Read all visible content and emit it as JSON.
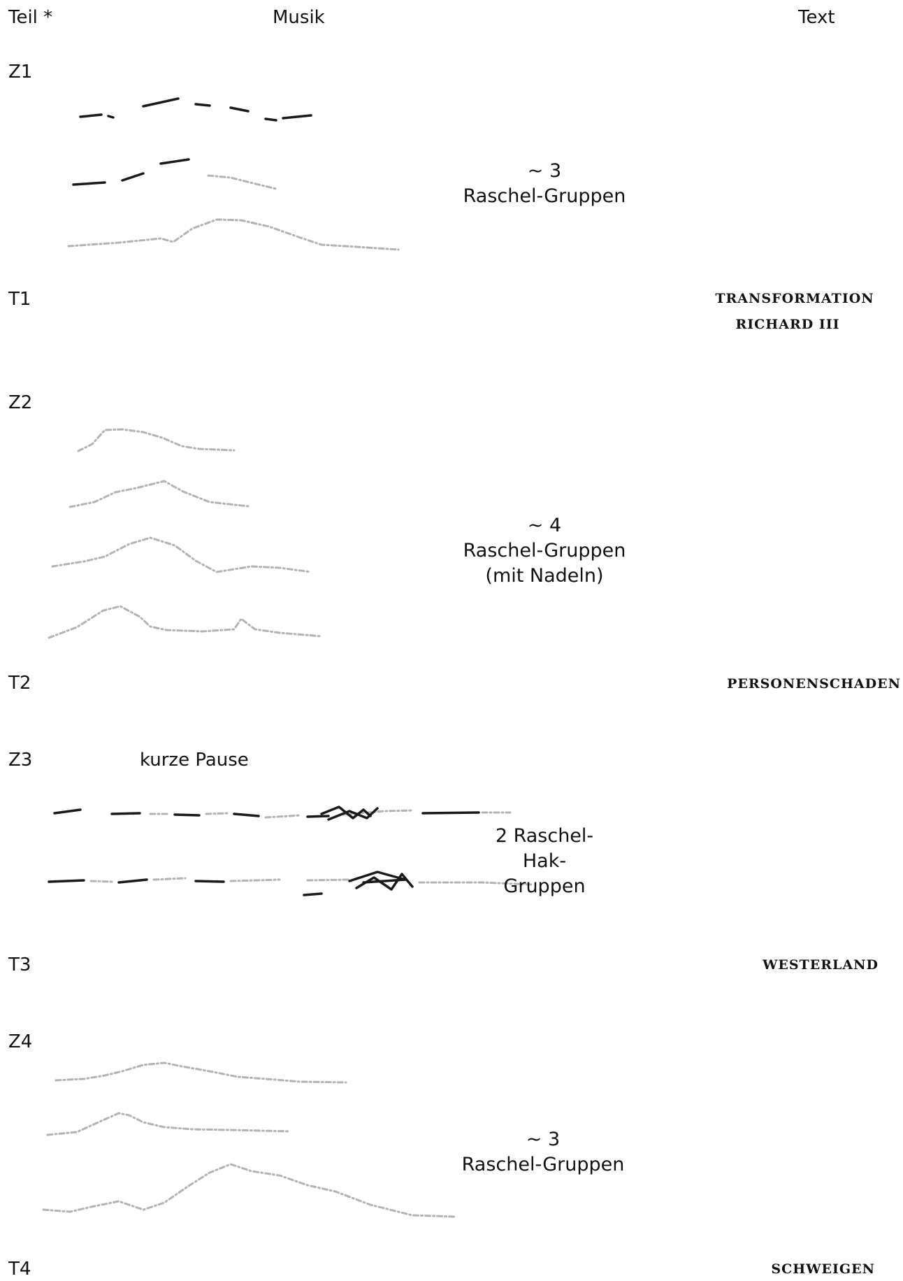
{
  "header": {
    "teil": "Teil *",
    "musik": "Musik",
    "text": "Text"
  },
  "sections": [
    {
      "zlabel": "Z1",
      "description": [
        "~ 3",
        "Raschel-Gruppen"
      ],
      "tlabel": "T1",
      "title": [
        "TRANSFORMATION",
        "RICHARD III"
      ]
    },
    {
      "zlabel": "Z2",
      "description": [
        "~ 4",
        "Raschel-Gruppen",
        "(mit Nadeln)"
      ],
      "tlabel": "T2",
      "title": [
        "PERSONENSCHADEN"
      ]
    },
    {
      "zlabel": "Z3",
      "note": "kurze Pause",
      "description": [
        "2 Raschel-",
        "Hak-",
        "Gruppen"
      ],
      "tlabel": "T3",
      "title": [
        "WESTERLAND"
      ]
    },
    {
      "zlabel": "Z4",
      "description": [
        "~ 3",
        "Raschel-Gruppen"
      ],
      "tlabel": "T4",
      "title": [
        "SCHWEIGEN"
      ]
    }
  ]
}
